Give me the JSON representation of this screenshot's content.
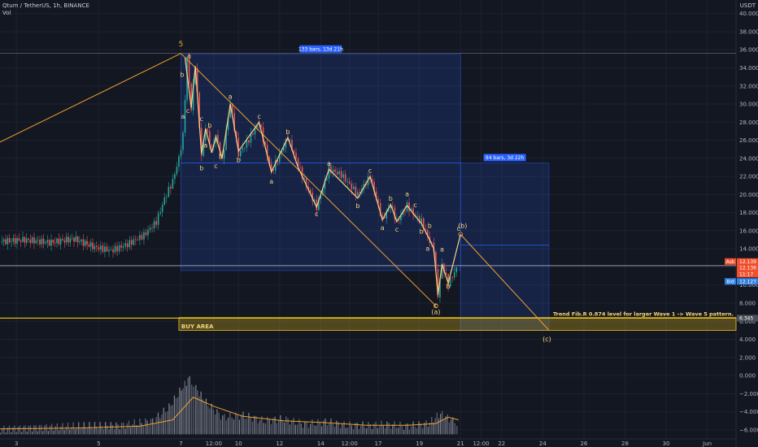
{
  "header": {
    "title": "Qtum / TetherUS, 1h, BINANCE",
    "indicator": "Vol",
    "currency": "USDT"
  },
  "chart_data": {
    "type": "candlestick",
    "symbol": "Qtum / TetherUS",
    "interval": "1h",
    "exchange": "BINANCE",
    "price_axis_ticks": [
      40.0,
      38.0,
      36.0,
      34.0,
      32.0,
      30.0,
      28.0,
      26.0,
      24.0,
      22.0,
      20.0,
      18.0,
      16.0,
      14.0,
      12.0,
      10.0,
      8.0,
      6.0,
      4.0,
      2.0,
      0.0,
      -2.0,
      -4.0,
      -6.0
    ],
    "price_axis_labels": [
      "40.000",
      "38.000",
      "36.000",
      "34.000",
      "32.000",
      "30.000",
      "28.000",
      "26.000",
      "24.000",
      "22.000",
      "20.000",
      "18.000",
      "16.000",
      "14.000",
      "12.000",
      "10.000",
      "8.000",
      "6.000",
      "4.000",
      "2.000",
      "0.000",
      "−2.000",
      "−4.000",
      "−6.000"
    ],
    "price_range": [
      -7.0,
      41.5
    ],
    "time_axis_labels": [
      {
        "label": "3",
        "day": 0
      },
      {
        "label": "5",
        "day": 2
      },
      {
        "label": "7",
        "day": 4
      },
      {
        "label": "12:00",
        "day": 4.8
      },
      {
        "label": "10",
        "day": 5.4
      },
      {
        "label": "12",
        "day": 6.4
      },
      {
        "label": "14",
        "day": 7.4
      },
      {
        "label": "12:00",
        "day": 8.1
      },
      {
        "label": "17",
        "day": 8.8
      },
      {
        "label": "19",
        "day": 9.8
      },
      {
        "label": "21",
        "day": 10.8
      },
      {
        "label": "12:00",
        "day": 11.3
      },
      {
        "label": "22",
        "day": 11.8
      },
      {
        "label": "24",
        "day": 12.8
      },
      {
        "label": "26",
        "day": 13.8
      },
      {
        "label": "28",
        "day": 14.8
      },
      {
        "label": "30",
        "day": 15.8
      },
      {
        "label": "Jun",
        "day": 16.8
      }
    ],
    "time_range": [
      -0.4,
      17.5
    ],
    "price_path": [
      [
        -0.4,
        14.8
      ],
      [
        0.2,
        15.0
      ],
      [
        0.8,
        14.7
      ],
      [
        1.4,
        15.1
      ],
      [
        1.9,
        14.2
      ],
      [
        2.3,
        13.8
      ],
      [
        2.7,
        14.5
      ],
      [
        3.1,
        15.5
      ],
      [
        3.4,
        17.0
      ],
      [
        3.6,
        19.5
      ],
      [
        3.8,
        21.5
      ],
      [
        3.95,
        24.0
      ],
      [
        4.05,
        26.5
      ],
      [
        4.15,
        35.0
      ],
      [
        4.25,
        29.5
      ],
      [
        4.35,
        34.3
      ],
      [
        4.5,
        24.2
      ],
      [
        4.6,
        27.5
      ],
      [
        4.75,
        25.0
      ],
      [
        4.85,
        26.6
      ],
      [
        5.0,
        23.6
      ],
      [
        5.2,
        30.2
      ],
      [
        5.4,
        24.5
      ],
      [
        5.6,
        25.7
      ],
      [
        5.9,
        28.0
      ],
      [
        6.2,
        22.5
      ],
      [
        6.6,
        26.3
      ],
      [
        7.0,
        21.5
      ],
      [
        7.3,
        18.6
      ],
      [
        7.6,
        22.8
      ],
      [
        7.9,
        22.2
      ],
      [
        8.3,
        20.0
      ],
      [
        8.6,
        22.0
      ],
      [
        8.9,
        17.2
      ],
      [
        9.1,
        18.9
      ],
      [
        9.25,
        17.0
      ],
      [
        9.5,
        18.8
      ],
      [
        9.7,
        17.6
      ],
      [
        9.85,
        17.0
      ],
      [
        10.05,
        14.8
      ],
      [
        10.15,
        14.0
      ],
      [
        10.25,
        8.9
      ],
      [
        10.35,
        12.3
      ],
      [
        10.5,
        10.2
      ],
      [
        10.7,
        11.8
      ]
    ],
    "volume_path": [
      [
        -0.4,
        -5.9
      ],
      [
        0.5,
        -5.7
      ],
      [
        1.5,
        -5.6
      ],
      [
        2.5,
        -5.5
      ],
      [
        3.3,
        -5.0
      ],
      [
        3.7,
        -3.5
      ],
      [
        4.0,
        -1.5
      ],
      [
        4.2,
        -0.2
      ],
      [
        4.35,
        -1.4
      ],
      [
        4.6,
        -3.0
      ],
      [
        5.0,
        -4.6
      ],
      [
        5.5,
        -4.4
      ],
      [
        6.0,
        -5.0
      ],
      [
        6.5,
        -4.8
      ],
      [
        7.0,
        -5.4
      ],
      [
        7.5,
        -5.1
      ],
      [
        8.0,
        -5.5
      ],
      [
        8.5,
        -5.5
      ],
      [
        9.0,
        -5.4
      ],
      [
        9.5,
        -5.6
      ],
      [
        10.0,
        -5.3
      ],
      [
        10.3,
        -4.2
      ],
      [
        10.6,
        -5.0
      ],
      [
        10.75,
        -5.2
      ]
    ],
    "volume_ma_path": [
      [
        -0.4,
        -5.9
      ],
      [
        1.5,
        -5.8
      ],
      [
        3.0,
        -5.6
      ],
      [
        3.8,
        -4.9
      ],
      [
        4.3,
        -2.4
      ],
      [
        4.8,
        -3.4
      ],
      [
        5.5,
        -4.5
      ],
      [
        6.5,
        -5.0
      ],
      [
        7.5,
        -5.2
      ],
      [
        8.5,
        -5.5
      ],
      [
        9.5,
        -5.5
      ],
      [
        10.2,
        -5.3
      ],
      [
        10.5,
        -4.6
      ],
      [
        10.75,
        -4.9
      ]
    ],
    "wave_lines": [
      {
        "name": "impulse-to-5",
        "color": "#f0a030",
        "points": [
          [
            -0.4,
            25.8
          ],
          [
            4.0,
            35.6
          ]
        ]
      },
      {
        "name": "upper-trendline",
        "color": "#f0a030",
        "points": [
          [
            4.0,
            35.6
          ],
          [
            10.2,
            7.7
          ]
        ]
      },
      {
        "name": "correction-c",
        "color": "#f0a030",
        "points": [
          [
            10.8,
            15.6
          ],
          [
            12.95,
            5.0
          ]
        ]
      },
      {
        "name": "zigzag",
        "color": "#f7d28a",
        "points": [
          [
            4.1,
            35.1
          ],
          [
            4.25,
            29.6
          ],
          [
            4.35,
            34.2
          ],
          [
            4.5,
            24.5
          ],
          [
            4.6,
            27.3
          ],
          [
            4.75,
            24.6
          ],
          [
            4.85,
            26.4
          ],
          [
            5.0,
            24.0
          ],
          [
            5.2,
            30.0
          ],
          [
            5.4,
            24.8
          ],
          [
            5.9,
            28.0
          ],
          [
            6.2,
            22.5
          ],
          [
            6.6,
            26.3
          ],
          [
            6.85,
            23.0
          ],
          [
            7.3,
            18.6
          ],
          [
            7.6,
            22.8
          ],
          [
            8.3,
            19.6
          ],
          [
            8.6,
            22.0
          ],
          [
            8.9,
            17.2
          ],
          [
            9.1,
            18.9
          ],
          [
            9.25,
            17.0
          ],
          [
            9.5,
            18.8
          ],
          [
            9.7,
            17.6
          ],
          [
            9.85,
            16.8
          ],
          [
            10.05,
            15.0
          ],
          [
            10.15,
            14.0
          ],
          [
            10.25,
            8.9
          ],
          [
            10.35,
            12.3
          ],
          [
            10.5,
            10.2
          ],
          [
            10.8,
            15.6
          ]
        ]
      }
    ],
    "wave_labels": [
      {
        "text": "5",
        "x": 4.0,
        "y": 36.4,
        "big": true
      },
      {
        "text": "a",
        "x": 4.2,
        "y": 35.1
      },
      {
        "text": "b",
        "x": 4.03,
        "y": 33.0
      },
      {
        "text": "a",
        "x": 4.05,
        "y": 28.4
      },
      {
        "text": "c",
        "x": 4.17,
        "y": 29.0
      },
      {
        "text": "c",
        "x": 4.5,
        "y": 28.1
      },
      {
        "text": "b",
        "x": 4.7,
        "y": 27.4
      },
      {
        "text": "a",
        "x": 4.6,
        "y": 25.2
      },
      {
        "text": "b",
        "x": 4.5,
        "y": 22.7
      },
      {
        "text": "c",
        "x": 4.85,
        "y": 22.9
      },
      {
        "text": "b",
        "x": 4.97,
        "y": 24.0
      },
      {
        "text": "a",
        "x": 5.2,
        "y": 30.6
      },
      {
        "text": "b",
        "x": 5.4,
        "y": 23.6
      },
      {
        "text": "c",
        "x": 5.9,
        "y": 28.4
      },
      {
        "text": "a",
        "x": 6.2,
        "y": 21.2
      },
      {
        "text": "b",
        "x": 6.6,
        "y": 26.7
      },
      {
        "text": "c",
        "x": 7.3,
        "y": 17.6
      },
      {
        "text": "a",
        "x": 7.6,
        "y": 23.2
      },
      {
        "text": "b",
        "x": 8.3,
        "y": 18.5
      },
      {
        "text": "c",
        "x": 8.6,
        "y": 22.4
      },
      {
        "text": "a",
        "x": 8.9,
        "y": 16.1
      },
      {
        "text": "b",
        "x": 9.1,
        "y": 19.3
      },
      {
        "text": "c",
        "x": 9.25,
        "y": 15.9
      },
      {
        "text": "a",
        "x": 9.5,
        "y": 19.8
      },
      {
        "text": "c",
        "x": 9.7,
        "y": 18.6
      },
      {
        "text": "b",
        "x": 9.85,
        "y": 15.7
      },
      {
        "text": "b",
        "x": 10.05,
        "y": 16.3
      },
      {
        "text": "a",
        "x": 10.0,
        "y": 13.8
      },
      {
        "text": "a",
        "x": 10.35,
        "y": 13.7
      },
      {
        "text": "c",
        "x": 10.2,
        "y": 7.5
      },
      {
        "text": "b",
        "x": 10.5,
        "y": 9.6
      },
      {
        "text": "c",
        "x": 10.75,
        "y": 16.0
      },
      {
        "text": "(b)",
        "x": 10.85,
        "y": 16.3
      },
      {
        "text": "(a)",
        "x": 10.2,
        "y": 6.8
      },
      {
        "text": "(c)",
        "x": 12.9,
        "y": 3.8
      }
    ],
    "measure_boxes": [
      {
        "name": "measure-box-1",
        "x": [
          4.0,
          10.8
        ],
        "y": [
          11.6,
          35.5
        ],
        "label": "133 bars, 13d 21h"
      },
      {
        "name": "measure-box-2",
        "x": [
          10.8,
          12.95
        ],
        "y": [
          5.0,
          23.5
        ],
        "label": "94 bars, 3d 22h"
      }
    ],
    "horizontal_lines": [
      {
        "name": "resistance-line-36",
        "y": 35.6,
        "color": "#6e7485"
      },
      {
        "name": "fib-level-line",
        "y": 6.345,
        "color": "#f0c419"
      },
      {
        "name": "current-price-line",
        "y": 12.139,
        "color": "#c0c3cc"
      }
    ],
    "buy_area": {
      "label": "BUY AREA",
      "x": [
        3.95,
        17.5
      ],
      "y": [
        5.0,
        6.4
      ]
    },
    "fib_annotation": "Trend Fib.R 0.874 level for larger Wave 1 -> Wave 5 pattern.",
    "price_tags": [
      {
        "text": "Ask",
        "value": "12.139",
        "color": "#f0502f"
      },
      {
        "text": "",
        "value": "12.136",
        "color": "#f0502f"
      },
      {
        "text": "",
        "value": "11:17",
        "color": "#f0502f"
      },
      {
        "text": "Bid",
        "value": "12.127",
        "color": "#2f7fe0"
      },
      {
        "text": "",
        "value": "6.345",
        "color": "#4a4f5c"
      }
    ]
  }
}
